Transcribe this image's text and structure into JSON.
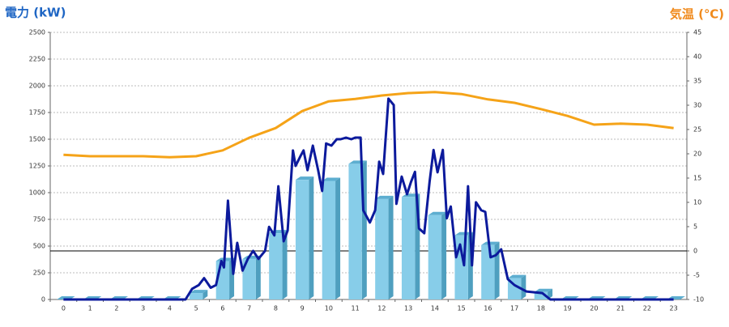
{
  "chart_data": {
    "type": "combo",
    "y_axis_title": "電力 (kW)",
    "y2_axis_title": "気温 (℃)",
    "categories": [
      "0",
      "1",
      "2",
      "3",
      "4",
      "5",
      "6",
      "7",
      "8",
      "9",
      "10",
      "11",
      "12",
      "13",
      "14",
      "15",
      "16",
      "17",
      "18",
      "19",
      "20",
      "21",
      "22",
      "23"
    ],
    "ylim": [
      0,
      2500
    ],
    "yticks": [
      0,
      250,
      500,
      750,
      1000,
      1250,
      1500,
      1750,
      2000,
      2250,
      2500
    ],
    "y2lim": [
      -10,
      45
    ],
    "y2ticks": [
      -10,
      -5,
      0,
      5,
      10,
      15,
      20,
      25,
      30,
      35,
      40,
      45
    ],
    "grid": true,
    "y2_reference_line": 0,
    "series": [
      {
        "type": "bar",
        "color": "#87cde9",
        "values": [
          0,
          0,
          0,
          0,
          0,
          60,
          360,
          380,
          620,
          1120,
          1110,
          1270,
          940,
          960,
          790,
          600,
          510,
          200,
          70,
          0,
          0,
          0,
          0,
          0
        ]
      },
      {
        "type": "line",
        "color": "#0c1a9c",
        "x": [
          0,
          4.5,
          4.6,
          4.85,
          5.1,
          5.3,
          5.55,
          5.75,
          5.95,
          6.05,
          6.2,
          6.4,
          6.55,
          6.75,
          6.95,
          7.15,
          7.35,
          7.6,
          7.75,
          7.95,
          8.1,
          8.3,
          8.45,
          8.65,
          8.75,
          8.95,
          9.05,
          9.2,
          9.4,
          9.6,
          9.75,
          9.9,
          10.1,
          10.3,
          10.45,
          10.65,
          10.85,
          11.0,
          11.2,
          11.3,
          11.55,
          11.75,
          11.9,
          12.05,
          12.25,
          12.45,
          12.55,
          12.75,
          12.95,
          13.1,
          13.25,
          13.4,
          13.6,
          13.8,
          13.95,
          14.1,
          14.3,
          14.45,
          14.6,
          14.8,
          14.95,
          15.1,
          15.25,
          15.4,
          15.55,
          15.75,
          15.9,
          16.1,
          16.3,
          16.5,
          16.75,
          17.0,
          17.45,
          18.05,
          18.35,
          23
        ],
        "values": [
          0,
          0,
          0,
          100,
          135,
          200,
          110,
          135,
          360,
          300,
          925,
          240,
          530,
          270,
          380,
          455,
          380,
          455,
          680,
          600,
          1060,
          545,
          645,
          1395,
          1250,
          1350,
          1395,
          1210,
          1440,
          1210,
          1015,
          1460,
          1440,
          1500,
          1500,
          1515,
          1500,
          1515,
          1515,
          835,
          720,
          835,
          1290,
          1175,
          1880,
          1820,
          895,
          1150,
          985,
          1100,
          1195,
          665,
          620,
          1100,
          1400,
          1190,
          1400,
          760,
          870,
          395,
          515,
          320,
          1060,
          320,
          910,
          835,
          820,
          395,
          415,
          470,
          190,
          135,
          75,
          60,
          0,
          0
        ]
      },
      {
        "type": "line",
        "color": "#f5a318",
        "axis": "y2",
        "values": [
          19.8,
          19.5,
          19.5,
          19.5,
          19.3,
          19.5,
          20.7,
          23.3,
          25.3,
          28.8,
          30.8,
          31.3,
          32.0,
          32.5,
          32.7,
          32.3,
          31.2,
          30.5,
          29.2,
          27.8,
          26.0,
          26.2,
          26.0,
          25.3
        ]
      }
    ]
  }
}
